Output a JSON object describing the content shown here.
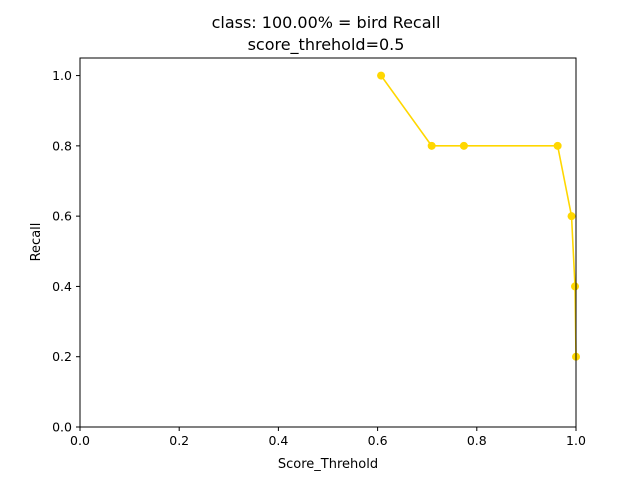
{
  "chart_data": {
    "type": "line",
    "title": "class: 100.00% = bird Recall",
    "subtitle": "score_threhold=0.5",
    "xlabel": "Score_Threhold",
    "ylabel": "Recall",
    "xlim": [
      0.0,
      1.0
    ],
    "ylim": [
      0.0,
      1.05
    ],
    "xticks": [
      "0.0",
      "0.2",
      "0.4",
      "0.6",
      "0.8",
      "1.0"
    ],
    "yticks": [
      "0.0",
      "0.2",
      "0.4",
      "0.6",
      "0.8",
      "1.0"
    ],
    "grid": false,
    "series": [
      {
        "color": "#ffd700",
        "marker": "circle",
        "x": [
          0.607,
          0.709,
          0.774,
          0.963,
          0.991,
          0.998,
          1.0
        ],
        "y": [
          1.0,
          0.8,
          0.8,
          0.8,
          0.6,
          0.4,
          0.2
        ]
      }
    ]
  }
}
